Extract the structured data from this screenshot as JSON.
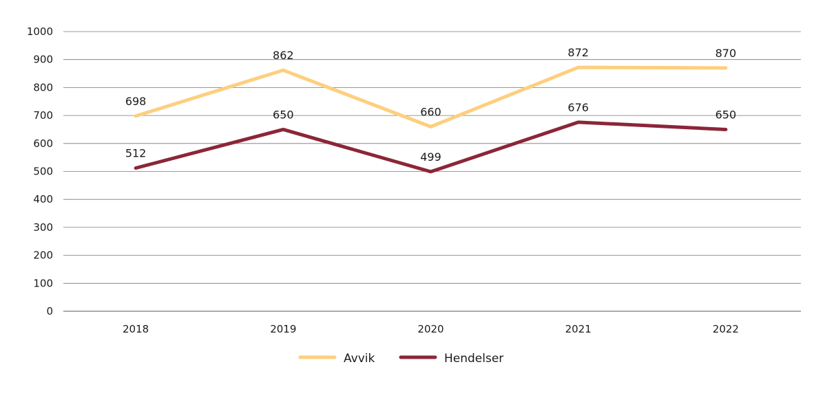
{
  "chart_data": {
    "type": "line",
    "categories": [
      "2018",
      "2019",
      "2020",
      "2021",
      "2022"
    ],
    "series": [
      {
        "name": "Avvik",
        "values": [
          698,
          862,
          660,
          872,
          870
        ],
        "color": "#fdcf7e"
      },
      {
        "name": "Hendelser",
        "values": [
          512,
          650,
          499,
          676,
          650
        ],
        "color": "#8b2638"
      }
    ],
    "ylim": [
      0,
      1000
    ],
    "yticks": [
      0,
      100,
      200,
      300,
      400,
      500,
      600,
      700,
      800,
      900,
      1000
    ],
    "grid": true,
    "legend": "bottom",
    "data_labels": true
  }
}
